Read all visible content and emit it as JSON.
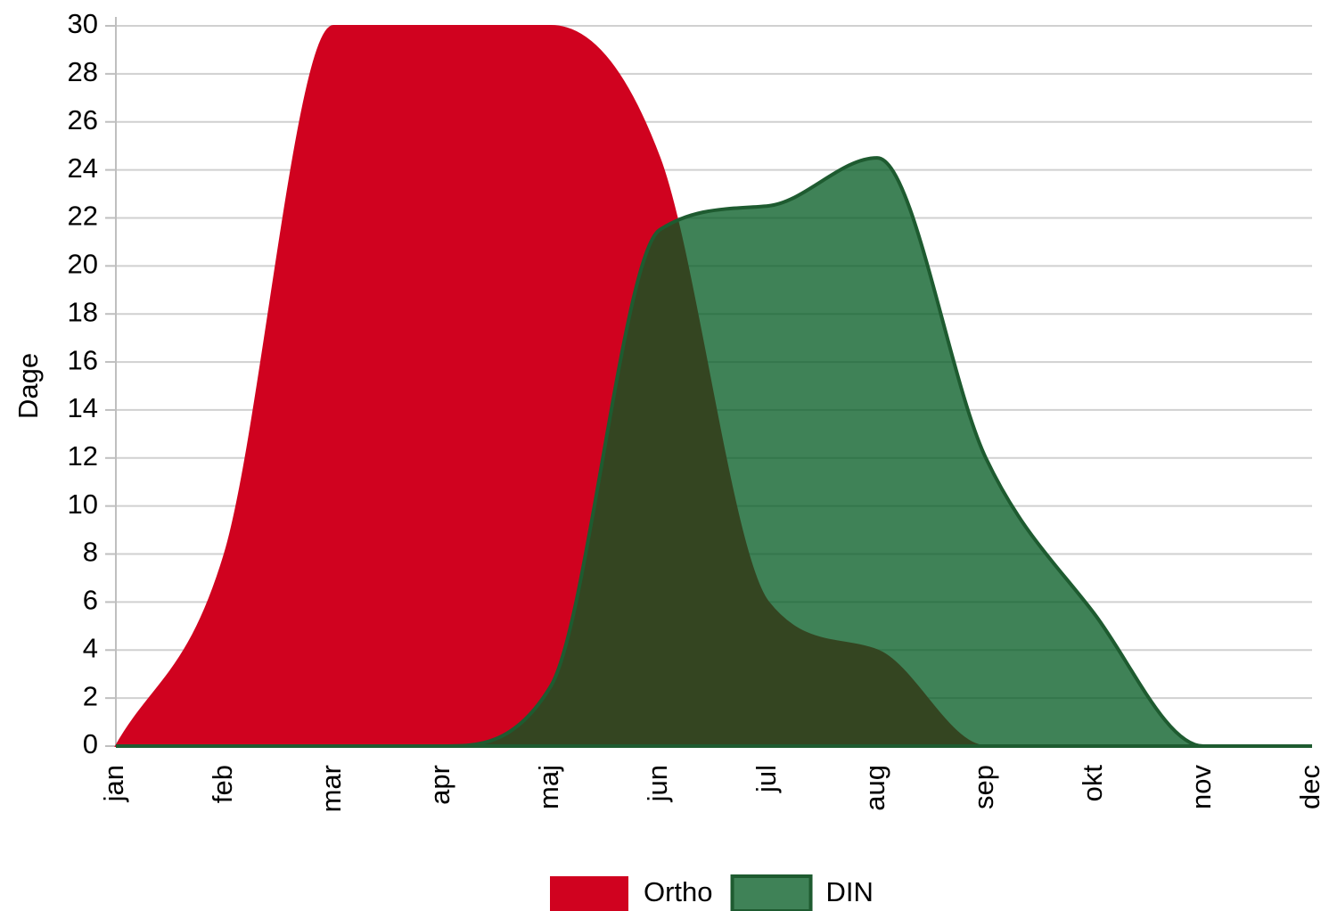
{
  "chart_data": {
    "type": "area",
    "y_label": "Dage",
    "categories": [
      "jan",
      "feb",
      "mar",
      "apr",
      "maj",
      "jun",
      "jul",
      "aug",
      "sep",
      "okt",
      "nov",
      "dec"
    ],
    "series": [
      {
        "name": "Ortho",
        "color": "#d0021f",
        "values": [
          0,
          8,
          30,
          30,
          30,
          24.5,
          6,
          4,
          0,
          0,
          0,
          0
        ]
      },
      {
        "name": "DIN",
        "color": "#035b22",
        "values": [
          0,
          0,
          0,
          0,
          2.5,
          21.5,
          22.5,
          24.5,
          12,
          5.5,
          0,
          0
        ]
      }
    ],
    "ylim": [
      0,
      30
    ],
    "yticks": [
      0,
      2,
      4,
      6,
      8,
      10,
      12,
      14,
      16,
      18,
      20,
      22,
      24,
      26,
      28,
      30
    ],
    "grid": true
  }
}
